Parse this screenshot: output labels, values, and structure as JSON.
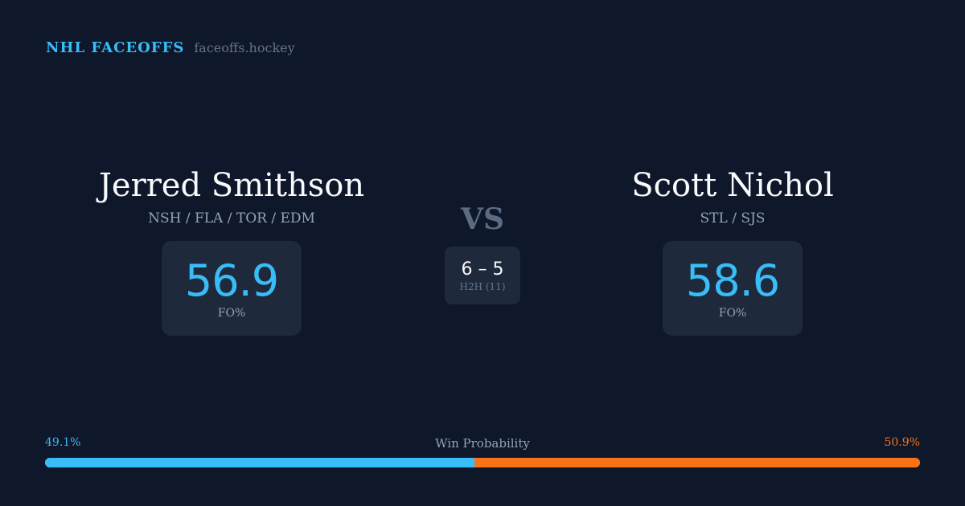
{
  "brand": {
    "name": "NHL FACEOFFS",
    "site": "faceoffs.hockey"
  },
  "left_player": {
    "name": "Jerred Smithson",
    "teams": "NSH / FLA / TOR / EDM",
    "fo_pct": "56.9",
    "fo_label": "FO%"
  },
  "right_player": {
    "name": "Scott Nichol",
    "teams": "STL / SJS",
    "fo_pct": "58.6",
    "fo_label": "FO%"
  },
  "vs": "VS",
  "h2h": {
    "score": "6 – 5",
    "label": "H2H (11)"
  },
  "win_probability": {
    "title": "Win Probability",
    "left": "49.1%",
    "right": "50.9%",
    "left_value": 49.1,
    "right_value": 50.9
  },
  "colors": {
    "background": "#0f172a",
    "left_accent": "#38bdf8",
    "right_accent": "#f97316",
    "card": "#1e293b"
  }
}
